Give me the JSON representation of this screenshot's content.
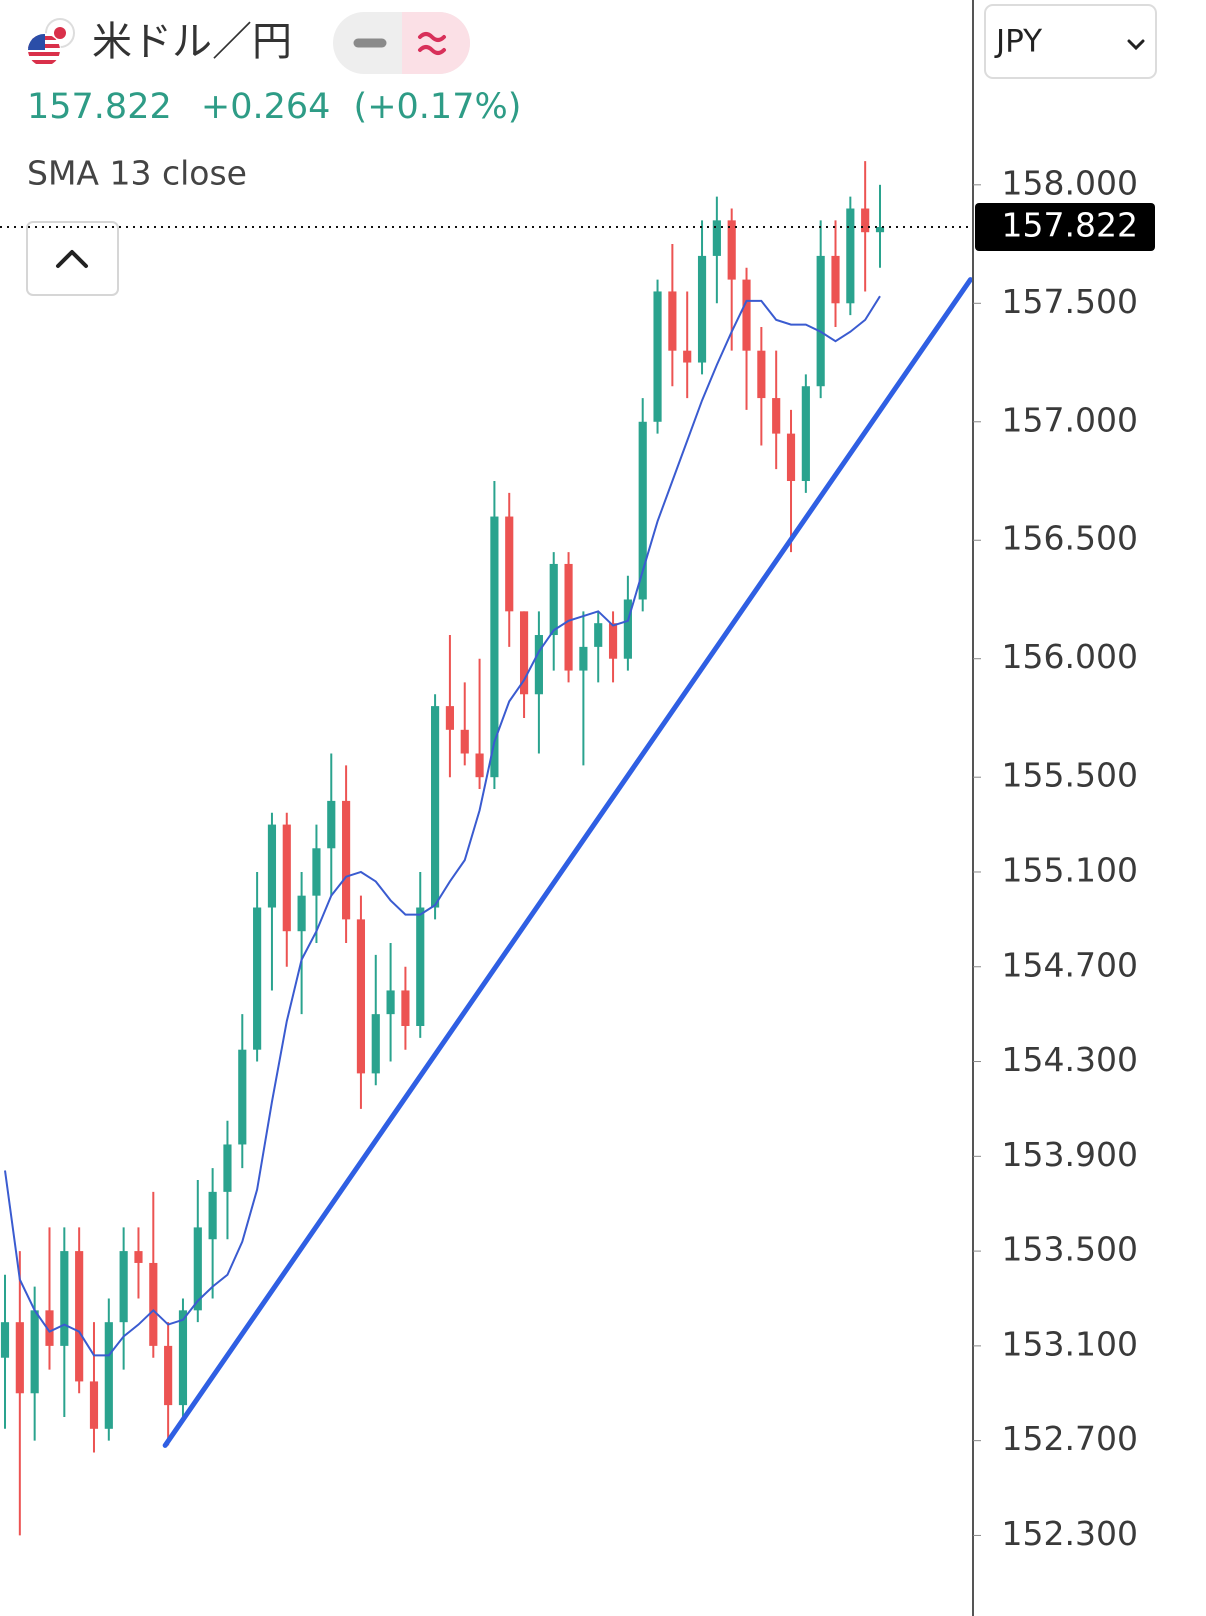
{
  "chart_data": {
    "type": "candlestick",
    "title": "米ドル／円",
    "change": "+0.264",
    "change_pct": "(+0.17%)",
    "currency": "JPY",
    "last_price": {
      "value": 157.822,
      "label": "157.822"
    },
    "up_color": "#2aa38e",
    "down_color": "#ec5352",
    "open": [
      153.05,
      153.2,
      152.9,
      153.25,
      153.1,
      153.5,
      152.95,
      152.75,
      153.2,
      153.5,
      153.45,
      153.1,
      152.85,
      153.25,
      153.55,
      153.75,
      153.95,
      154.35,
      154.95,
      155.3,
      154.85,
      155.0,
      155.2,
      155.4,
      154.9,
      154.25,
      154.5,
      154.6,
      154.45,
      154.95,
      155.8,
      155.7,
      155.6,
      155.5,
      156.6,
      156.2,
      155.85,
      156.1,
      156.4,
      155.95,
      156.05,
      156.15,
      156.0,
      156.25,
      157.0,
      157.55,
      157.3,
      157.25,
      157.7,
      157.85,
      157.6,
      157.3,
      157.1,
      156.95,
      156.75,
      157.15,
      157.7,
      157.5,
      157.9,
      157.8
    ],
    "high": [
      153.4,
      153.5,
      153.35,
      153.6,
      153.6,
      153.6,
      153.2,
      153.3,
      153.6,
      153.6,
      153.75,
      153.2,
      153.3,
      153.8,
      153.85,
      154.05,
      154.5,
      155.1,
      155.35,
      155.35,
      155.1,
      155.3,
      155.6,
      155.55,
      155.0,
      154.75,
      154.8,
      154.7,
      155.1,
      155.85,
      156.1,
      155.9,
      156.0,
      156.75,
      156.7,
      156.2,
      156.2,
      156.45,
      156.45,
      156.2,
      156.2,
      156.2,
      156.35,
      157.1,
      157.6,
      157.75,
      157.55,
      157.85,
      157.95,
      157.9,
      157.65,
      157.4,
      157.3,
      157.05,
      157.2,
      157.85,
      157.85,
      157.95,
      158.1,
      158.0
    ],
    "low": [
      152.75,
      152.3,
      152.7,
      153.0,
      152.8,
      152.9,
      152.65,
      152.7,
      153.0,
      153.3,
      153.05,
      152.68,
      152.8,
      153.2,
      153.3,
      153.55,
      153.85,
      154.3,
      154.6,
      154.7,
      154.5,
      154.8,
      155.0,
      154.8,
      154.1,
      154.2,
      154.3,
      154.35,
      154.4,
      154.9,
      155.5,
      155.55,
      155.45,
      155.45,
      156.05,
      155.75,
      155.6,
      155.95,
      155.9,
      155.55,
      155.9,
      155.9,
      155.95,
      156.2,
      156.95,
      157.15,
      157.1,
      157.2,
      157.5,
      157.3,
      157.05,
      156.9,
      156.8,
      156.45,
      156.7,
      157.1,
      157.4,
      157.45,
      157.55,
      157.65
    ],
    "close": [
      153.2,
      152.9,
      153.25,
      153.1,
      153.5,
      152.95,
      152.75,
      153.2,
      153.5,
      153.45,
      153.1,
      152.85,
      153.25,
      153.6,
      153.75,
      153.95,
      154.35,
      154.95,
      155.3,
      154.85,
      155.0,
      155.2,
      155.4,
      154.9,
      154.25,
      154.5,
      154.6,
      154.45,
      154.95,
      155.8,
      155.7,
      155.6,
      155.5,
      156.6,
      156.2,
      155.85,
      156.1,
      156.4,
      155.95,
      156.05,
      156.15,
      156.0,
      156.25,
      157.0,
      157.55,
      157.3,
      157.25,
      157.7,
      157.85,
      157.6,
      157.3,
      157.1,
      156.95,
      156.75,
      157.15,
      157.7,
      157.5,
      157.9,
      157.8,
      157.822
    ],
    "sma": {
      "name": "SMA 13 close",
      "color": "#3a5bd0",
      "values": [
        153.84,
        153.38,
        153.25,
        153.16,
        153.19,
        153.16,
        153.06,
        153.06,
        153.14,
        153.19,
        153.25,
        153.19,
        153.21,
        153.29,
        153.35,
        153.4,
        153.54,
        153.76,
        154.13,
        154.47,
        154.73,
        154.85,
        155.0,
        155.08,
        155.1,
        155.06,
        154.98,
        154.92,
        154.92,
        154.96,
        155.06,
        155.15,
        155.36,
        155.65,
        155.82,
        155.91,
        156.03,
        156.12,
        156.16,
        156.18,
        156.2,
        156.14,
        156.16,
        156.37,
        156.58,
        156.75,
        156.92,
        157.09,
        157.24,
        157.38,
        157.51,
        157.51,
        157.43,
        157.41,
        157.41,
        157.38,
        157.34,
        157.38,
        157.43,
        157.53
      ]
    },
    "trendline": {
      "color": "#2f5fe3",
      "x": [
        10.8,
        65.1
      ],
      "values": [
        152.68,
        157.6
      ]
    },
    "ylim": [
      151.96,
      158.78
    ],
    "yticks": [
      {
        "value": 158,
        "label": "158.000"
      },
      {
        "value": 157.5,
        "label": "157.500"
      },
      {
        "value": 157,
        "label": "157.000"
      },
      {
        "value": 156.5,
        "label": "156.500"
      },
      {
        "value": 156,
        "label": "156.000"
      },
      {
        "value": 155.5,
        "label": "155.500"
      },
      {
        "value": 155.1,
        "label": "155.100"
      },
      {
        "value": 154.7,
        "label": "154.700"
      },
      {
        "value": 154.3,
        "label": "154.300"
      },
      {
        "value": 153.9,
        "label": "153.900"
      },
      {
        "value": 153.5,
        "label": "153.500"
      },
      {
        "value": 153.1,
        "label": "153.100"
      },
      {
        "value": 152.7,
        "label": "152.700"
      },
      {
        "value": 152.3,
        "label": "152.300"
      }
    ]
  }
}
